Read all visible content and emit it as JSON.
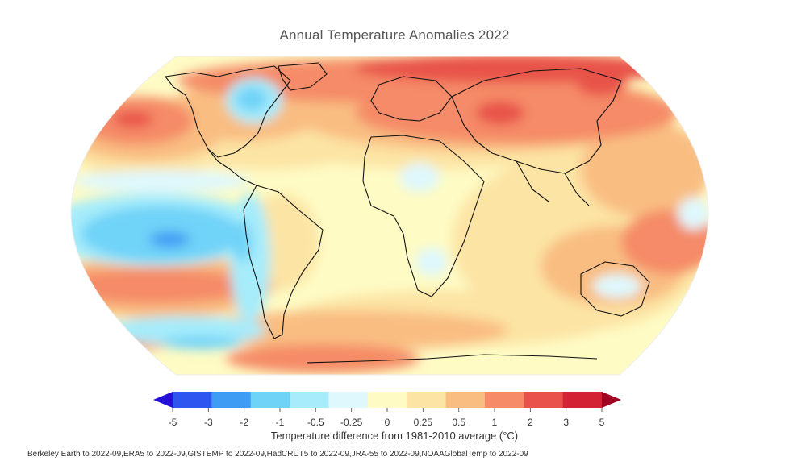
{
  "map": {
    "title": "Annual Temperature Anomalies 2022",
    "projection": "Robinson",
    "baseline": "1981-2010"
  },
  "legend": {
    "title": "Temperature difference from 1981-2010 average (°C)",
    "ticks": [
      "-5",
      "-3",
      "-2",
      "-1",
      "-0.5",
      "-0.25",
      "0",
      "0.25",
      "0.5",
      "1",
      "2",
      "3",
      "5"
    ],
    "colors": [
      "#2410d6",
      "#2f55f0",
      "#3f9cf4",
      "#6fd3f8",
      "#a6ecfb",
      "#dff8fd",
      "#fefbc4",
      "#fce4a4",
      "#f9bd82",
      "#f58b67",
      "#e8524a",
      "#d42235",
      "#a10523"
    ]
  },
  "source": "Berkeley Earth to 2022-09,ERA5 to 2022-09,GISTEMP to 2022-09,HadCRUT5 to 2022-09,JRA-55 to 2022-09,NOAAGlobalTemp to 2022-09"
}
